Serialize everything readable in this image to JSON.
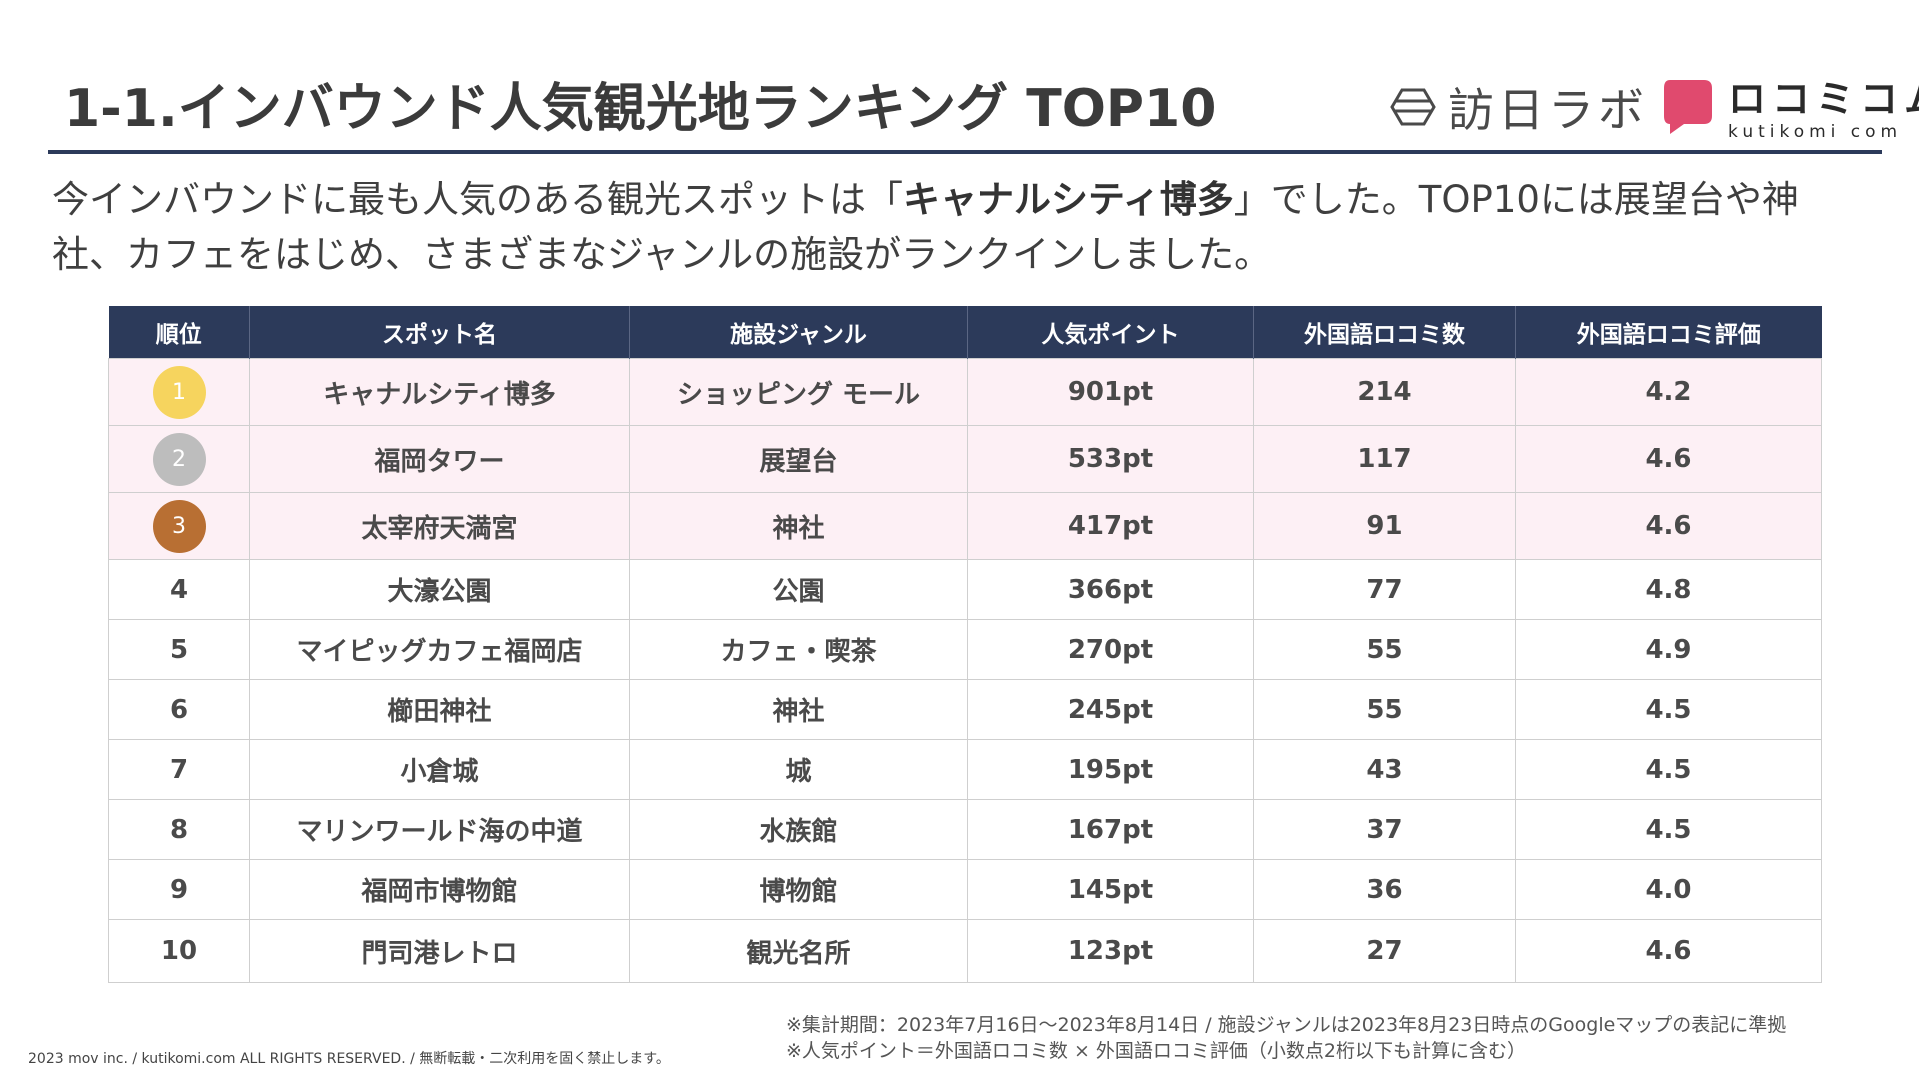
{
  "title": "1-1.インバウンド人気観光地ランキング TOP10",
  "logos": {
    "houn": "訪日ラボ",
    "kutikomi_main": "ロコミコム",
    "kutikomi_sub": "kutikomi com",
    "colors": {
      "houn_icon": "#4a4a4a",
      "kutikomi_icon": "#e04a6e"
    }
  },
  "lead": {
    "before": "今インバウンドに最も人気のある観光スポットは「",
    "highlight": "キャナルシティ博多",
    "after": "」でした。TOP10には展望台や神社、カフェをはじめ、さまざまなジャンルの施設がランクインしました。"
  },
  "table": {
    "headers": [
      "順位",
      "スポット名",
      "施設ジャンル",
      "人気ポイント",
      "外国語ロコミ数",
      "外国語ロコミ評価"
    ],
    "rows": [
      {
        "rank": "1",
        "spot": "キャナルシティ博多",
        "genre": "ショッピング モール",
        "points": "901pt",
        "reviews": "214",
        "rating": "4.2"
      },
      {
        "rank": "2",
        "spot": "福岡タワー",
        "genre": "展望台",
        "points": "533pt",
        "reviews": "117",
        "rating": "4.6"
      },
      {
        "rank": "3",
        "spot": "太宰府天満宮",
        "genre": "神社",
        "points": "417pt",
        "reviews": "91",
        "rating": "4.6"
      },
      {
        "rank": "4",
        "spot": "大濠公園",
        "genre": "公園",
        "points": "366pt",
        "reviews": "77",
        "rating": "4.8"
      },
      {
        "rank": "5",
        "spot": "マイピッグカフェ福岡店",
        "genre": "カフェ・喫茶",
        "points": "270pt",
        "reviews": "55",
        "rating": "4.9"
      },
      {
        "rank": "6",
        "spot": "櫛田神社",
        "genre": "神社",
        "points": "245pt",
        "reviews": "55",
        "rating": "4.5"
      },
      {
        "rank": "7",
        "spot": "小倉城",
        "genre": "城",
        "points": "195pt",
        "reviews": "43",
        "rating": "4.5"
      },
      {
        "rank": "8",
        "spot": "マリンワールド海の中道",
        "genre": "水族館",
        "points": "167pt",
        "reviews": "37",
        "rating": "4.5"
      },
      {
        "rank": "9",
        "spot": "福岡市博物館",
        "genre": "博物館",
        "points": "145pt",
        "reviews": "36",
        "rating": "4.0"
      },
      {
        "rank": "10",
        "spot": "門司港レトロ",
        "genre": "観光名所",
        "points": "123pt",
        "reviews": "27",
        "rating": "4.6"
      }
    ],
    "colors": {
      "header_bg": "#2c3a5a",
      "top3_row_bg": "#fdf0f5",
      "medal_gold": "#f6d45e",
      "medal_silver": "#bdbdbd",
      "medal_bronze": "#b86f33"
    }
  },
  "notes": [
    "※集計期間：2023年7月16日〜2023年8月14日 / 施設ジャンルは2023年8月23日時点のGoogleマップの表記に準拠",
    "※人気ポイント＝外国語ロコミ数 × 外国語ロコミ評価（小数点2桁以下も計算に含む）"
  ],
  "copyright": "2023 mov inc. / kutikomi.com ALL RIGHTS RESERVED. / 無断転載・二次利用を固く禁止します。"
}
